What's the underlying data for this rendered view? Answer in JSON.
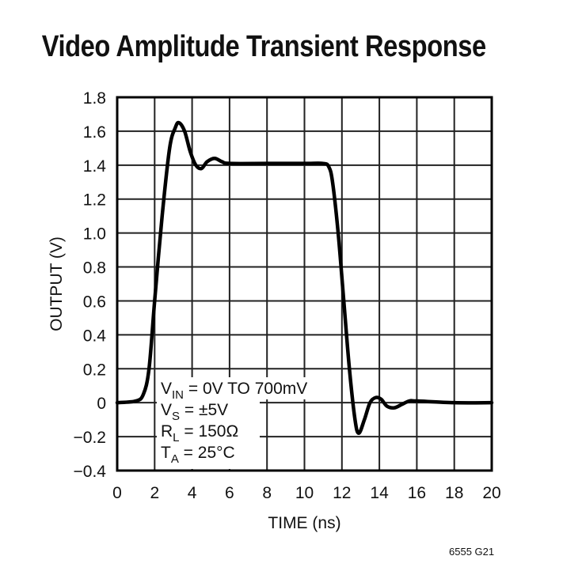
{
  "chart_data": {
    "type": "line",
    "title": "Video Amplitude Transient Response",
    "xlabel": "TIME (ns)",
    "ylabel": "OUTPUT (V)",
    "xlim": [
      0,
      20
    ],
    "ylim": [
      -0.4,
      1.8
    ],
    "x_ticks": [
      "0",
      "2",
      "4",
      "6",
      "8",
      "10",
      "12",
      "14",
      "16",
      "18",
      "20"
    ],
    "y_ticks": [
      "1.8",
      "1.6",
      "1.4",
      "1.2",
      "1.0",
      "0.8",
      "0.6",
      "0.4",
      "0.2",
      "0",
      "−0.2",
      "−0.4"
    ],
    "grid": true,
    "series": [
      {
        "name": "Output",
        "x": [
          0,
          1.0,
          1.4,
          1.7,
          2.0,
          2.4,
          2.8,
          3.1,
          3.3,
          3.6,
          3.9,
          4.2,
          4.5,
          4.8,
          5.2,
          5.6,
          6.0,
          8.0,
          10.0,
          11.0,
          11.3,
          11.5,
          11.8,
          12.1,
          12.4,
          12.7,
          12.9,
          13.2,
          13.5,
          13.8,
          14.1,
          14.4,
          14.8,
          15.2,
          15.6,
          16.0,
          18.0,
          20.0
        ],
        "y": [
          0,
          0.01,
          0.05,
          0.2,
          0.6,
          1.1,
          1.5,
          1.62,
          1.65,
          1.6,
          1.48,
          1.4,
          1.38,
          1.42,
          1.44,
          1.42,
          1.41,
          1.41,
          1.41,
          1.41,
          1.39,
          1.3,
          1.0,
          0.6,
          0.2,
          -0.1,
          -0.18,
          -0.1,
          0.0,
          0.03,
          0.02,
          -0.02,
          -0.03,
          -0.01,
          0.01,
          0.01,
          0.0,
          0.0
        ]
      }
    ],
    "annotations": [
      {
        "main": "V",
        "sub": "IN",
        "rest": " = 0V TO 700mV"
      },
      {
        "main": "V",
        "sub": "S",
        "rest": " = ±5V"
      },
      {
        "main": "R",
        "sub": "L",
        "rest": " = 150Ω"
      },
      {
        "main": "T",
        "sub": "A",
        "rest": " = 25°C"
      }
    ],
    "figure_code": "6555 G21"
  }
}
